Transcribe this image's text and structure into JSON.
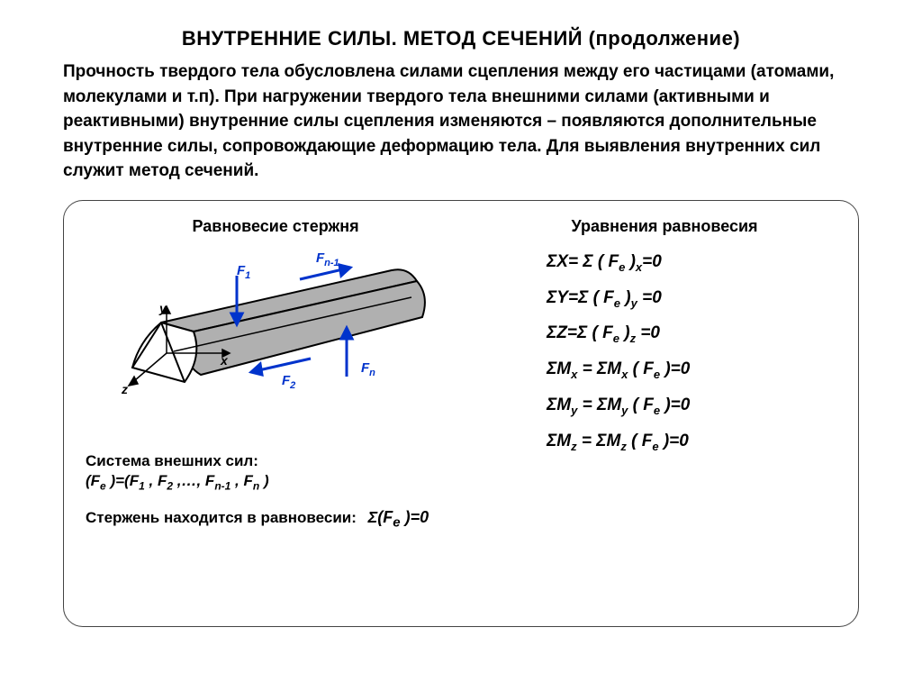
{
  "title": "ВНУТРЕННИЕ СИЛЫ. МЕТОД СЕЧЕНИЙ   (продолжение)",
  "intro": "Прочность твердого тела обусловлена силами сцепления между его частицами (атомами, молекулами и т.п). При нагружении твердого тела внешними силами (активными и реактивными) внутренние силы сцепления изменяются – появляются дополнительные внутренние силы, сопровождающие деформацию тела. Для выявления внутренних сил служит метод сечений.",
  "left_title": "Равновесие  стержня",
  "right_title": "Уравнения  равновесия",
  "caption_forces": "Система внешних сил:",
  "forces_formula_html": "(F<sub>e</sub> )=(F<sub>1</sub> , F<sub>2</sub> ,…, F<sub>n-1</sub> , F<sub>n</sub> )",
  "equil_text": "Стержень находится в равновесии:",
  "equil_formula_html": "Σ(F<sub>e</sub> )=0",
  "diagram": {
    "fill": "#b0b0b0",
    "stroke": "#000000",
    "force_color": "#0033cc",
    "labels": {
      "F1": "F<sub>1</sub>",
      "F2": "F<sub>2</sub>",
      "Fn": "F<sub>n</sub>",
      "Fn1": "F<sub>n-1</sub>",
      "x": "x",
      "y": "y",
      "z": "z"
    }
  },
  "equations": [
    "ΣX= Σ ( F<sub>e</sub> )<sub>x</sub>=0",
    "ΣY=Σ ( F<sub>e</sub> )<sub>y</sub> =0",
    "ΣZ=Σ ( F<sub>e</sub> )<sub>z</sub> =0",
    "ΣM<sub>x</sub> = ΣM<sub>x</sub> ( F<sub>e</sub> )=0",
    "ΣM<sub>y</sub> = ΣM<sub>y</sub> ( F<sub>e</sub> )=0",
    "ΣM<sub>z</sub> = ΣM<sub>z</sub> ( F<sub>e</sub> )=0"
  ]
}
